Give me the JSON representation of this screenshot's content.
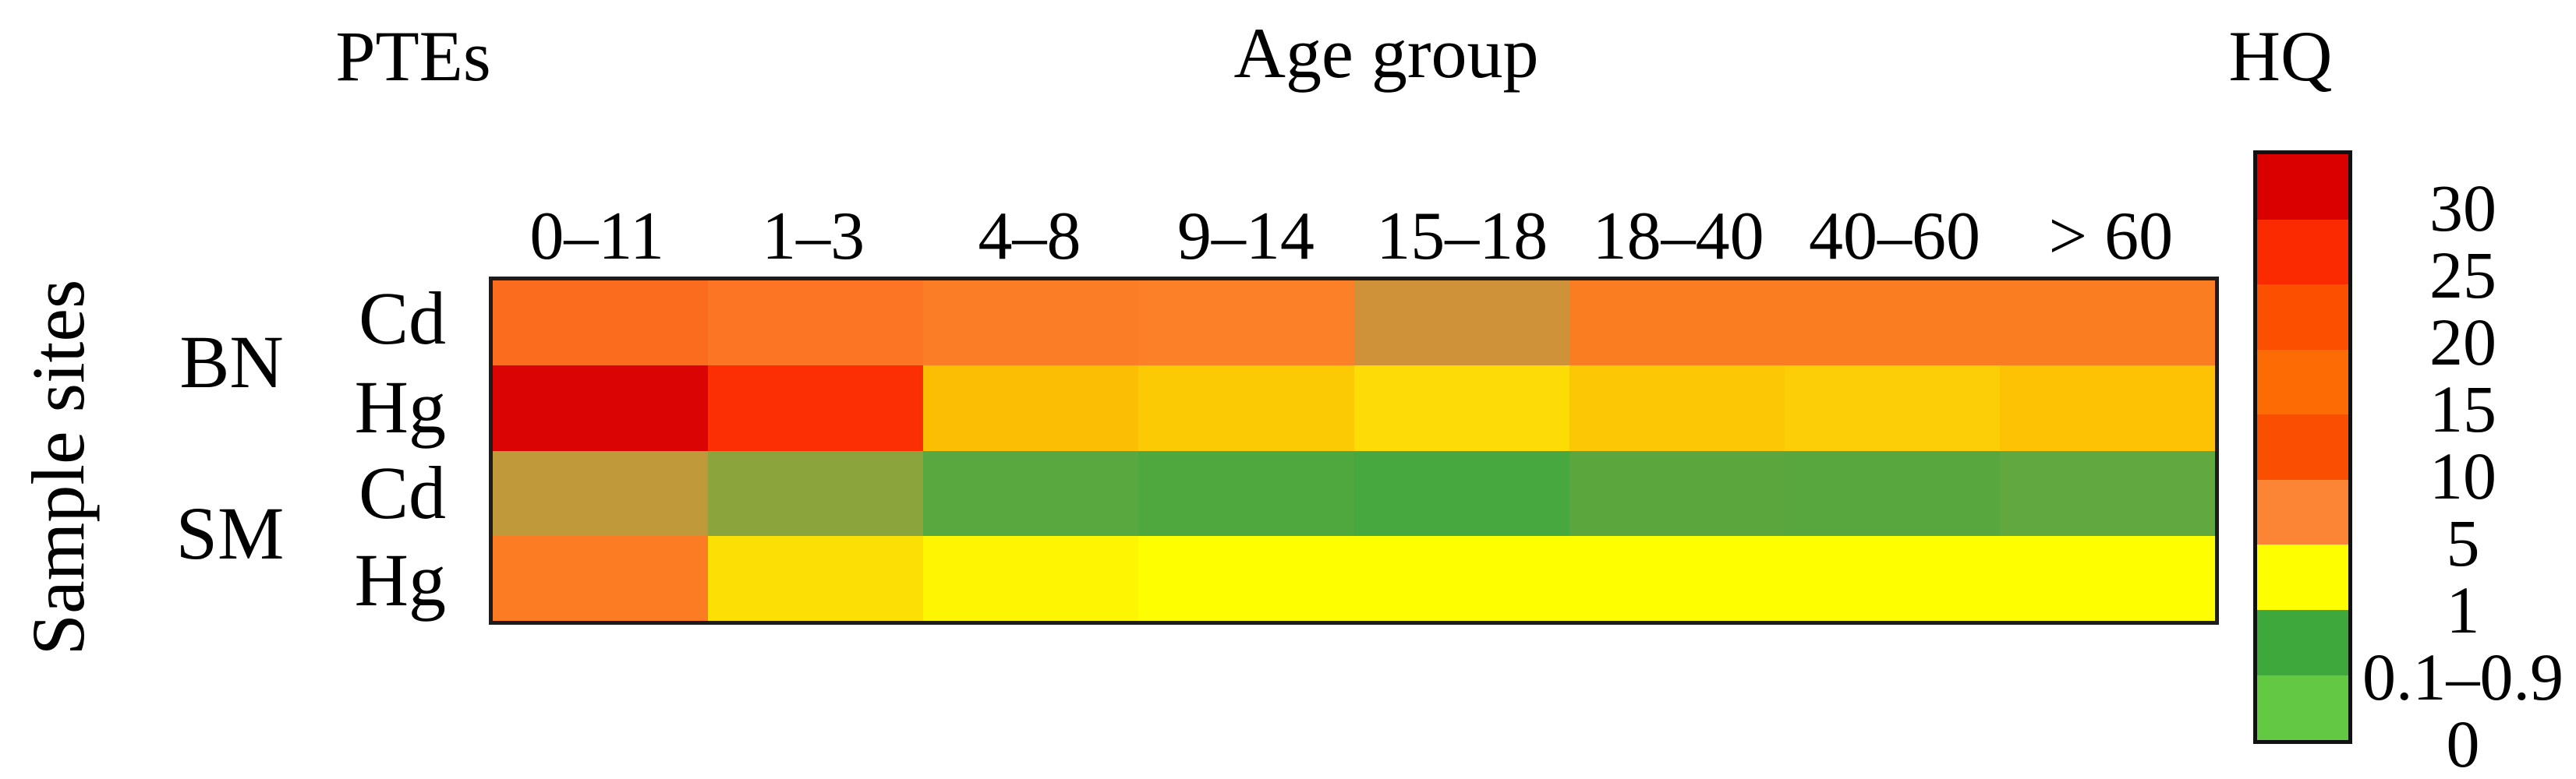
{
  "figure": {
    "kind": "risk-heatmap-figure",
    "background": "#ffffff",
    "border_color": "#1c1c1c"
  },
  "chart_data": {
    "type": "heatmap",
    "row_header_title": "PTEs",
    "x_title": "Age group",
    "y_title": "Sample sites",
    "legend_title": "HQ",
    "columns": [
      "0–11",
      "1–3",
      "4–8",
      "9–14",
      "15–18",
      "18–40",
      "40–60",
      "> 60"
    ],
    "row_groups": [
      "BN",
      "SM"
    ],
    "rows": [
      {
        "site": "BN",
        "pte": "Cd"
      },
      {
        "site": "BN",
        "pte": "Hg"
      },
      {
        "site": "SM",
        "pte": "Cd"
      },
      {
        "site": "SM",
        "pte": "Hg"
      }
    ],
    "values_estimated_from_colors": true,
    "series": [
      {
        "name": "BN Cd",
        "values": [
          12,
          11,
          10,
          10,
          5,
          10,
          10,
          10
        ]
      },
      {
        "name": "BN Hg",
        "values": [
          30,
          25,
          4,
          3,
          2,
          3,
          3,
          4
        ]
      },
      {
        "name": "SM Cd",
        "values": [
          2,
          0.9,
          0.5,
          0.4,
          0.3,
          0.5,
          0.5,
          0.5
        ]
      },
      {
        "name": "SM Hg",
        "values": [
          7,
          1.2,
          1,
          1,
          1,
          1,
          1,
          1
        ]
      }
    ],
    "cell_colors": [
      [
        "#fb6c1e",
        "#fb7524",
        "#fb7d26",
        "#fb8028",
        "#d09238",
        "#fb7d22",
        "#fb7d22",
        "#fb7d22"
      ],
      [
        "#db0404",
        "#fb2e04",
        "#fcbe03",
        "#fcc905",
        "#fcdc04",
        "#fcc805",
        "#fcce08",
        "#fcc203"
      ],
      [
        "#c0993a",
        "#8ba43c",
        "#57a83e",
        "#4ea83e",
        "#46a83e",
        "#5ba73e",
        "#58a73e",
        "#61a93e"
      ],
      [
        "#fb7c23",
        "#fcdf04",
        "#fdf501",
        "#fefe00",
        "#fefe00",
        "#fefe00",
        "#fefe00",
        "#fefe00"
      ]
    ],
    "legend": {
      "position": "right",
      "labels": [
        "30",
        "25",
        "20",
        "15",
        "10",
        "5",
        "1",
        "0.1–0.9",
        "0"
      ],
      "colors": [
        "#db0000",
        "#fb2a00",
        "#fc5000",
        "#fd6b05",
        "#fb4f00",
        "#fc8435",
        "#fefe00",
        "#3fa83d",
        "#63c943"
      ]
    },
    "grid": false,
    "x_range_note": "8 discrete age-group columns",
    "y_range_note": "4 rows: BN(Cd,Hg), SM(Cd,Hg)"
  }
}
